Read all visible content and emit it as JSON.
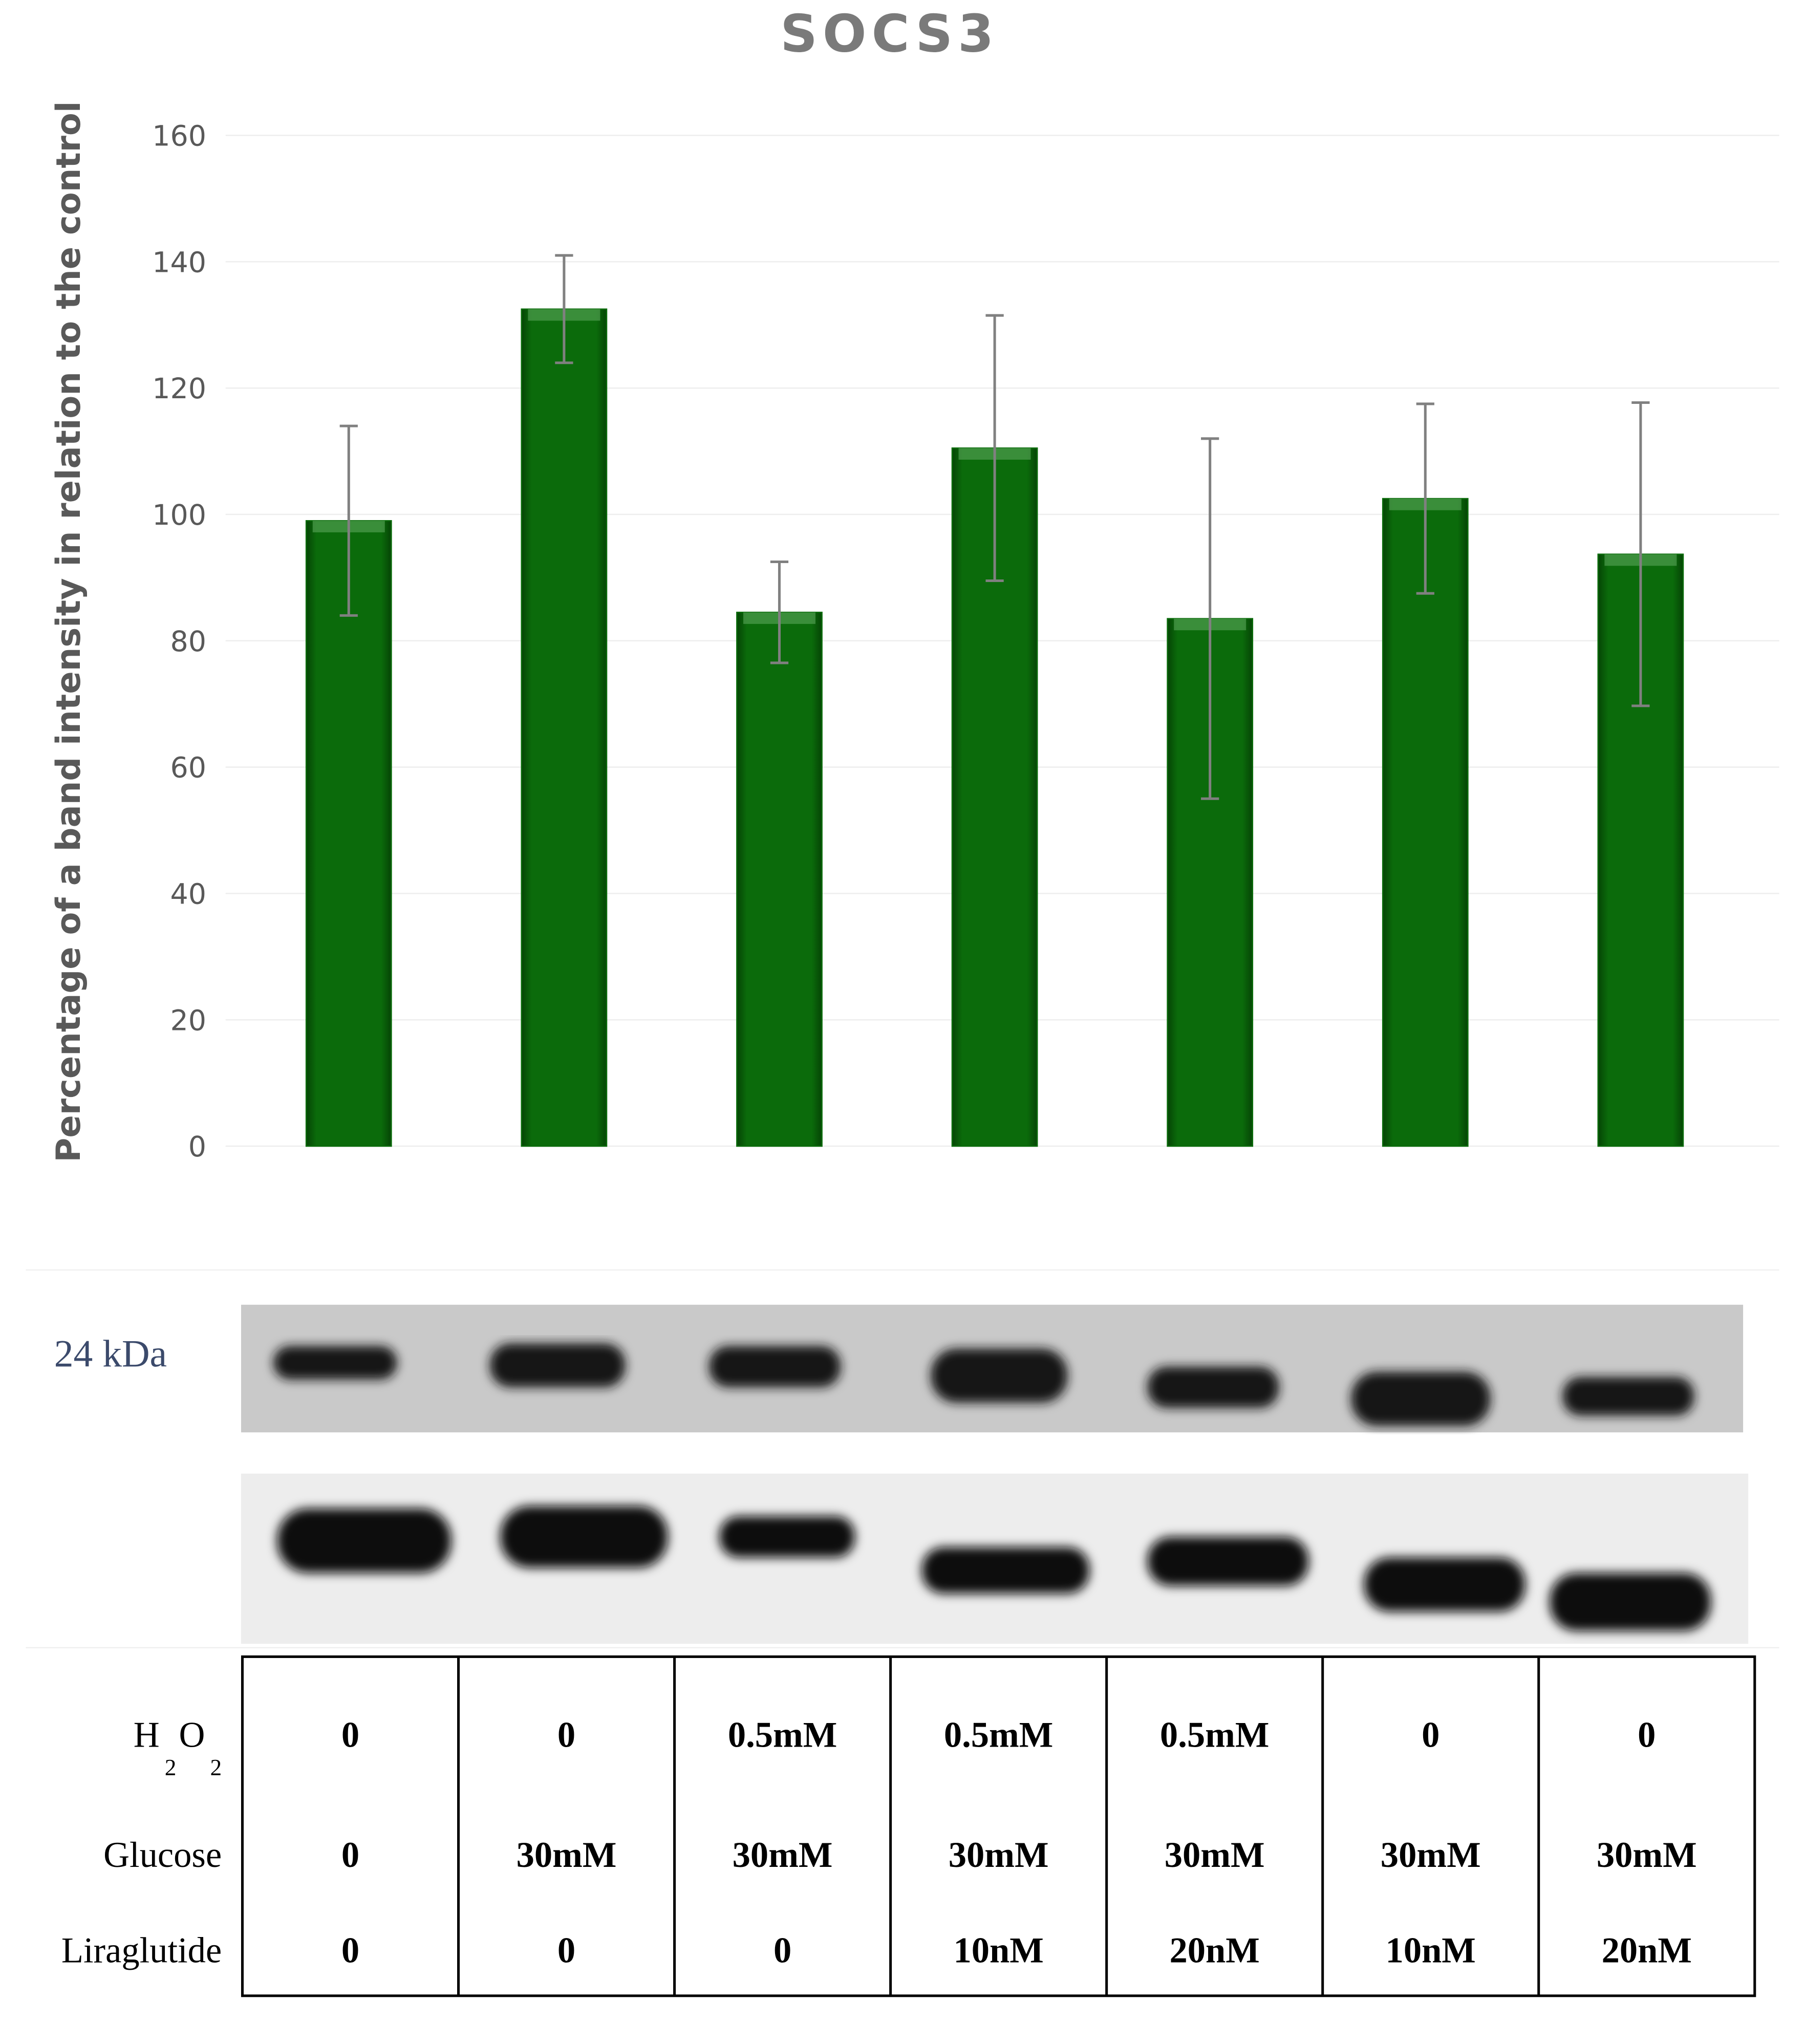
{
  "chart_data": {
    "type": "bar",
    "title": "SOCS3",
    "y_label": "Percentage of a band intensity in relation to the control",
    "categories": [
      null,
      null,
      null,
      null,
      null,
      null,
      null
    ],
    "values": [
      99,
      132.5,
      84.5,
      110.5,
      83.5,
      102.5,
      93.7
    ],
    "errors": [
      15,
      8.5,
      8,
      21,
      28.5,
      15,
      24
    ],
    "color": "#0b6b0b",
    "error_color": "#808080",
    "ylim": [
      0,
      160
    ],
    "yticks": [
      0,
      20,
      40,
      60,
      80,
      100,
      120,
      140,
      160
    ],
    "grid": true
  },
  "blot": {
    "marker": "24 kDa"
  },
  "table": {
    "rows": [
      {
        "label": [
          "H",
          "2",
          "O",
          "2"
        ],
        "subscript": [
          false,
          true,
          false,
          true
        ],
        "cells": [
          "0",
          "0",
          "0.5mM",
          "0.5mM",
          "0.5mM",
          "0",
          "0"
        ]
      },
      {
        "label": [
          "Glucose"
        ],
        "subscript": [
          false
        ],
        "cells": [
          "0",
          "30mM",
          "30mM",
          "30mM",
          "30mM",
          "30mM",
          "30mM"
        ]
      },
      {
        "label": [
          "Liraglutide"
        ],
        "subscript": [
          false
        ],
        "cells": [
          "0",
          "0",
          "0",
          "10nM",
          "20nM",
          "10nM",
          "20nM"
        ]
      }
    ]
  }
}
